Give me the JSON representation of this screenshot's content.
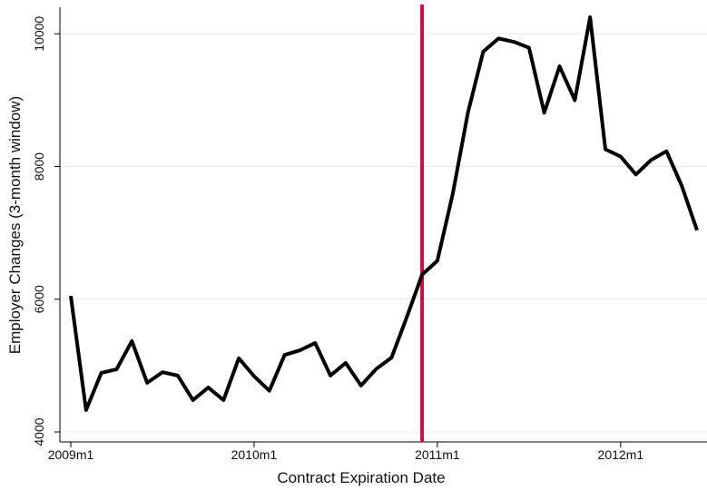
{
  "chart_data": {
    "type": "line",
    "x_label": "Contract Expiration Date",
    "y_label": "Employer Changes (3-month window)",
    "categories": [
      "2009m1",
      null,
      null,
      null,
      null,
      null,
      null,
      null,
      null,
      null,
      null,
      null,
      "2010m1",
      null,
      null,
      null,
      null,
      null,
      null,
      null,
      null,
      null,
      null,
      null,
      "2011m1",
      null,
      null,
      null,
      null,
      null,
      null,
      null,
      null,
      null,
      null,
      null,
      "2012m1",
      null,
      null,
      null,
      null,
      null
    ],
    "series": [
      {
        "color": "#000000",
        "values": [
          6050,
          4330,
          4890,
          4945,
          5370,
          4740,
          4900,
          4850,
          4480,
          4670,
          4480,
          5110,
          4840,
          4620,
          5160,
          5230,
          5340,
          4850,
          5040,
          4700,
          4950,
          5120,
          5730,
          6370,
          6580,
          7580,
          8810,
          9730,
          9930,
          9880,
          9790,
          8810,
          9510,
          9000,
          10250,
          8260,
          8150,
          7880,
          8100,
          8230,
          7710,
          7040
        ]
      }
    ],
    "reference_line": {
      "category_index": 23,
      "color": "#c0143c"
    },
    "ylim": [
      3850,
      10400
    ],
    "yticks": [
      4000,
      6000,
      8000,
      10000
    ],
    "grid": true
  }
}
